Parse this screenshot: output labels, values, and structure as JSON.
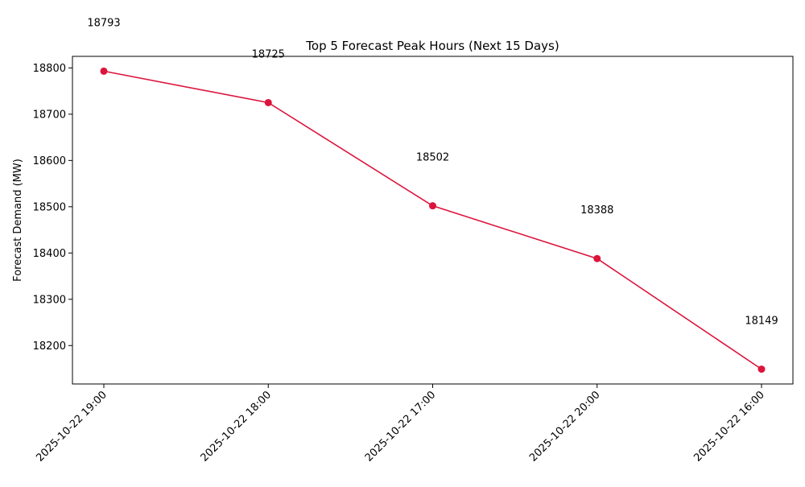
{
  "chart_data": {
    "type": "line",
    "title": "Top 5 Forecast Peak Hours (Next 15 Days)",
    "xlabel": "",
    "ylabel": "Forecast Demand (MW)",
    "categories": [
      "2025-10-22 19:00",
      "2025-10-22 18:00",
      "2025-10-22 17:00",
      "2025-10-22 20:00",
      "2025-10-22 16:00"
    ],
    "series": [
      {
        "values": [
          18793,
          18725,
          18502,
          18388,
          18149
        ],
        "color": "#dc143c"
      }
    ],
    "data_labels": [
      "18793",
      "18725",
      "18502",
      "18388",
      "18149"
    ],
    "ylim": [
      18117,
      18825
    ],
    "yticks": [
      18200,
      18300,
      18400,
      18500,
      18600,
      18700,
      18800
    ],
    "grid": false,
    "legend": "none",
    "marker": "circle"
  }
}
